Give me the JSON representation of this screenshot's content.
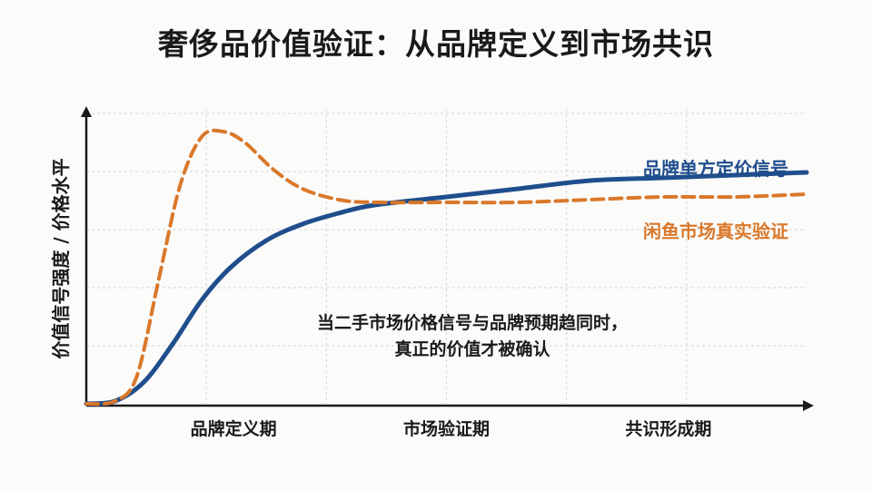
{
  "chart_data": {
    "type": "line",
    "title": "奢侈品价值验证：从品牌定义到市场共识",
    "ylabel": "价值信号强度 / 价格水平",
    "xlabel": "",
    "x_categories": [
      "品牌定义期",
      "市场验证期",
      "共识形成期"
    ],
    "xlim": [
      0,
      1
    ],
    "ylim": [
      0,
      1
    ],
    "grid": true,
    "legend_position": "right",
    "series": [
      {
        "name": "品牌单方定价信号",
        "style": "solid",
        "color": "#1f4e8c",
        "points": [
          [
            0,
            0
          ],
          [
            0.04,
            0.01
          ],
          [
            0.08,
            0.08
          ],
          [
            0.12,
            0.22
          ],
          [
            0.16,
            0.38
          ],
          [
            0.2,
            0.5
          ],
          [
            0.25,
            0.6
          ],
          [
            0.3,
            0.66
          ],
          [
            0.35,
            0.7
          ],
          [
            0.4,
            0.73
          ],
          [
            0.5,
            0.76
          ],
          [
            0.6,
            0.79
          ],
          [
            0.7,
            0.82
          ],
          [
            0.8,
            0.83
          ],
          [
            0.9,
            0.84
          ],
          [
            1,
            0.85
          ]
        ]
      },
      {
        "name": "闲鱼市场真实验证",
        "style": "dashed",
        "color": "#d9782a",
        "points": [
          [
            0,
            0
          ],
          [
            0.04,
            0.01
          ],
          [
            0.07,
            0.1
          ],
          [
            0.1,
            0.45
          ],
          [
            0.13,
            0.8
          ],
          [
            0.16,
            0.98
          ],
          [
            0.19,
            1.0
          ],
          [
            0.22,
            0.96
          ],
          [
            0.26,
            0.86
          ],
          [
            0.3,
            0.79
          ],
          [
            0.35,
            0.75
          ],
          [
            0.4,
            0.74
          ],
          [
            0.5,
            0.74
          ],
          [
            0.6,
            0.74
          ],
          [
            0.7,
            0.75
          ],
          [
            0.8,
            0.76
          ],
          [
            0.9,
            0.76
          ],
          [
            1,
            0.77
          ]
        ]
      }
    ],
    "annotation": {
      "line1": "当二手市场价格信号与品牌预期趋同时，",
      "line2": "真正的价值才被确认"
    }
  }
}
